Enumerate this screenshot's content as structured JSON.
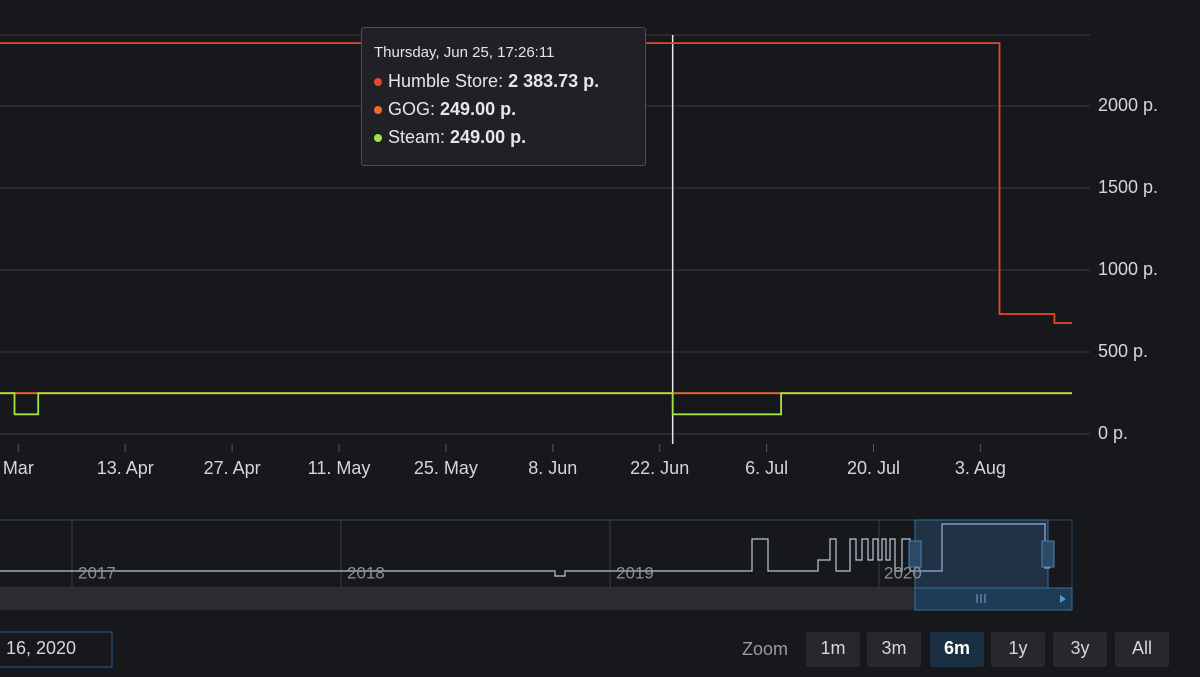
{
  "chart_data": {
    "type": "line",
    "xlim": [
      -2.4,
      138
    ],
    "xticks": [
      {
        "value": 0,
        "label": "Mar"
      },
      {
        "value": 14,
        "label": "13. Apr"
      },
      {
        "value": 28,
        "label": "27. Apr"
      },
      {
        "value": 42,
        "label": "11. May"
      },
      {
        "value": 56,
        "label": "25. May"
      },
      {
        "value": 70,
        "label": "8. Jun"
      },
      {
        "value": 84,
        "label": "22. Jun"
      },
      {
        "value": 98,
        "label": "6. Jul"
      },
      {
        "value": 112,
        "label": "20. Jul"
      },
      {
        "value": 126,
        "label": "3. Aug"
      }
    ],
    "ylim": [
      0,
      2500
    ],
    "yticks": [
      {
        "value": 0,
        "label": "0 p."
      },
      {
        "value": 500,
        "label": "500 p."
      },
      {
        "value": 1000,
        "label": "1000 p."
      },
      {
        "value": 1500,
        "label": "1500 p."
      },
      {
        "value": 2000,
        "label": "2000 p."
      }
    ],
    "grid": true,
    "series": [
      {
        "name": "Humble Store",
        "color": "#e8452c",
        "x": [
          -2.4,
          128.5,
          128.5,
          135.7,
          135.7,
          138
        ],
        "values": [
          2383.73,
          2383.73,
          732,
          732,
          677,
          677
        ]
      },
      {
        "name": "GOG",
        "color": "#ee6a2e",
        "x": [
          -2.4,
          138
        ],
        "values": [
          249,
          249
        ]
      },
      {
        "name": "Steam",
        "color": "#a6e23c",
        "x": [
          -2.4,
          -0.5,
          -0.5,
          2.6,
          2.6,
          85.7,
          85.7,
          99.9,
          99.9,
          138
        ],
        "values": [
          249,
          249,
          120,
          120,
          249,
          249,
          120,
          120,
          249,
          249
        ]
      }
    ],
    "tooltip": {
      "header": "Thursday, Jun 25, 17:26:11",
      "x": 85.7,
      "value_labels": [
        "2 383.73 p.",
        "249.00 p.",
        "249.00 p."
      ]
    },
    "navigator": {
      "labels": [
        "2017",
        "2018",
        "2019",
        "2020"
      ]
    },
    "range_selector": {
      "date": "16, 2020",
      "zoom_label": "Zoom",
      "buttons": [
        "1m",
        "3m",
        "6m",
        "1y",
        "3y",
        "All"
      ],
      "selected": 2
    }
  }
}
